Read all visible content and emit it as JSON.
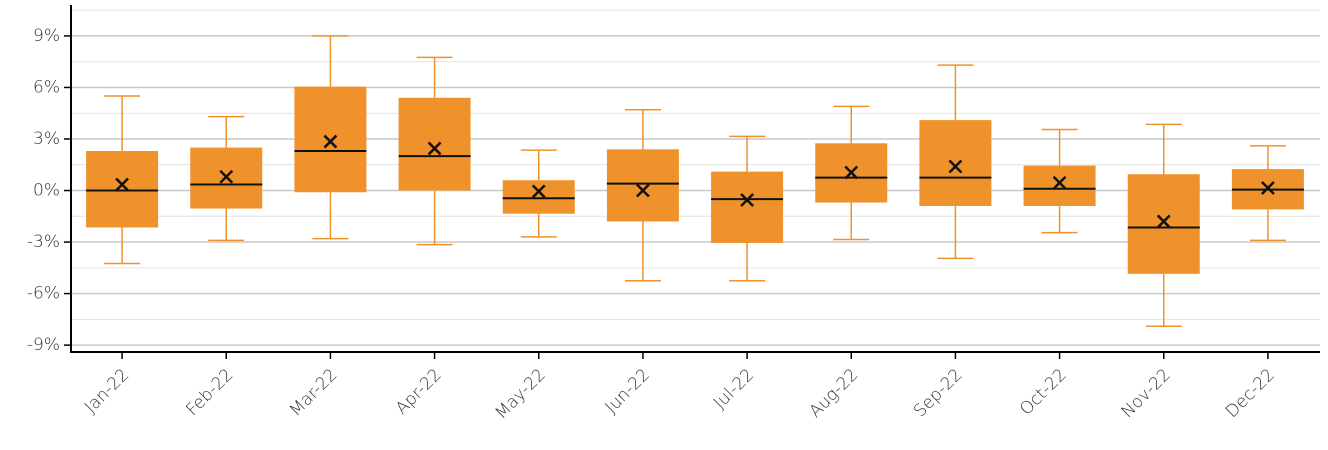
{
  "chart_data": {
    "type": "box",
    "categories": [
      "Jan-22",
      "Feb-22",
      "Mar-22",
      "Apr-22",
      "May-22",
      "Jun-22",
      "Jul-22",
      "Aug-22",
      "Sep-22",
      "Oct-22",
      "Nov-22",
      "Dec-22"
    ],
    "min": [
      -4.25,
      -2.9,
      -2.8,
      -3.15,
      -2.7,
      -5.25,
      -5.25,
      -2.85,
      -3.95,
      -2.45,
      -7.9,
      -2.9
    ],
    "q1": [
      -2.15,
      -1.05,
      -0.1,
      0,
      -1.35,
      -1.8,
      -3.05,
      -0.7,
      -0.9,
      -0.9,
      -4.85,
      -1.1
    ],
    "median": [
      0,
      0.35,
      2.3,
      2.0,
      -0.45,
      0.4,
      -0.5,
      0.75,
      0.75,
      0.1,
      -2.15,
      0.05
    ],
    "q3": [
      2.3,
      2.5,
      6.05,
      5.4,
      0.6,
      2.4,
      1.1,
      2.75,
      4.1,
      1.45,
      0.95,
      1.25
    ],
    "max": [
      5.5,
      4.3,
      9.0,
      7.75,
      2.35,
      4.7,
      3.15,
      4.9,
      7.3,
      3.55,
      3.85,
      2.6
    ],
    "mean": [
      0.35,
      0.8,
      2.85,
      2.45,
      -0.05,
      0,
      -0.55,
      1.05,
      1.4,
      0.45,
      -1.8,
      0.15
    ],
    "color": "#f0922b",
    "ylim": [
      -9.4,
      10.8
    ],
    "yticks": [
      {
        "value": -9,
        "label": "-9%"
      },
      {
        "value": -6,
        "label": "-6%"
      },
      {
        "value": -3,
        "label": "-3%"
      },
      {
        "value": 0,
        "label": "0%"
      },
      {
        "value": 3,
        "label": "3%"
      },
      {
        "value": 6,
        "label": "6%"
      },
      {
        "value": 9,
        "label": "9%"
      }
    ],
    "minor_yticks": [
      -7.5,
      -4.5,
      -1.5,
      1.5,
      4.5,
      7.5,
      10.5
    ],
    "grid": true
  }
}
